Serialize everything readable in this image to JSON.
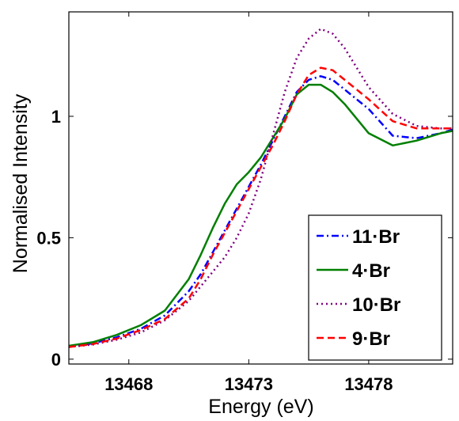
{
  "chart_data": {
    "type": "line",
    "title": "",
    "xlabel": "Energy (eV)",
    "ylabel": "Normalised Intensity",
    "xlim": [
      13465.5,
      13481.5
    ],
    "ylim": [
      -0.02,
      1.43
    ],
    "xticks": [
      13468,
      13473,
      13478
    ],
    "xtick_labels": [
      "13468",
      "13473",
      "13478"
    ],
    "yticks": [
      0,
      0.5,
      1
    ],
    "ytick_labels": [
      "0",
      "0.5",
      "1"
    ],
    "grid": false,
    "legend_position": "lower-right",
    "series": [
      {
        "name": "11·Br",
        "color": "#0000ff",
        "style": "dashdot",
        "x": [
          13465.5,
          13466.5,
          13467.5,
          13468.5,
          13469.5,
          13470.5,
          13471.0,
          13471.5,
          13472.0,
          13472.5,
          13473.0,
          13473.5,
          13474.0,
          13474.5,
          13475.0,
          13475.5,
          13476.0,
          13476.5,
          13477.0,
          13478.0,
          13479.0,
          13480.0,
          13481.0,
          13481.5
        ],
        "y": [
          0.05,
          0.065,
          0.09,
          0.125,
          0.18,
          0.28,
          0.35,
          0.44,
          0.53,
          0.62,
          0.71,
          0.8,
          0.9,
          1.0,
          1.1,
          1.15,
          1.165,
          1.15,
          1.11,
          1.03,
          0.92,
          0.91,
          0.93,
          0.945
        ]
      },
      {
        "name": "4·Br",
        "color": "#007f00",
        "style": "solid",
        "x": [
          13465.5,
          13466.5,
          13467.5,
          13468.5,
          13469.5,
          13470.5,
          13471.0,
          13471.5,
          13472.0,
          13472.5,
          13473.0,
          13473.5,
          13474.0,
          13474.5,
          13475.0,
          13475.5,
          13476.0,
          13476.5,
          13477.0,
          13478.0,
          13479.0,
          13480.0,
          13481.0,
          13481.5
        ],
        "y": [
          0.055,
          0.07,
          0.1,
          0.14,
          0.2,
          0.33,
          0.43,
          0.54,
          0.64,
          0.72,
          0.77,
          0.83,
          0.91,
          0.99,
          1.09,
          1.13,
          1.13,
          1.1,
          1.05,
          0.93,
          0.88,
          0.9,
          0.93,
          0.94
        ]
      },
      {
        "name": "10·Br",
        "color": "#800080",
        "style": "dotted",
        "x": [
          13465.5,
          13466.5,
          13467.5,
          13468.5,
          13469.5,
          13470.5,
          13471.0,
          13471.5,
          13472.0,
          13472.5,
          13473.0,
          13473.5,
          13474.0,
          13474.5,
          13475.0,
          13475.5,
          13476.0,
          13476.5,
          13477.0,
          13478.0,
          13479.0,
          13480.0,
          13481.0,
          13481.5
        ],
        "y": [
          0.05,
          0.06,
          0.08,
          0.11,
          0.16,
          0.24,
          0.3,
          0.36,
          0.42,
          0.5,
          0.6,
          0.74,
          0.92,
          1.1,
          1.24,
          1.32,
          1.36,
          1.34,
          1.28,
          1.12,
          1.01,
          0.96,
          0.95,
          0.95
        ]
      },
      {
        "name": "9·Br",
        "color": "#ff0000",
        "style": "dashed",
        "x": [
          13465.5,
          13466.5,
          13467.5,
          13468.5,
          13469.5,
          13470.5,
          13471.0,
          13471.5,
          13472.0,
          13472.5,
          13473.0,
          13473.5,
          13474.0,
          13474.5,
          13475.0,
          13475.5,
          13476.0,
          13476.5,
          13477.0,
          13478.0,
          13479.0,
          13480.0,
          13481.0,
          13481.5
        ],
        "y": [
          0.05,
          0.062,
          0.085,
          0.12,
          0.165,
          0.25,
          0.33,
          0.43,
          0.52,
          0.61,
          0.7,
          0.79,
          0.88,
          0.98,
          1.09,
          1.17,
          1.2,
          1.19,
          1.15,
          1.07,
          0.98,
          0.95,
          0.95,
          0.95
        ]
      }
    ]
  }
}
